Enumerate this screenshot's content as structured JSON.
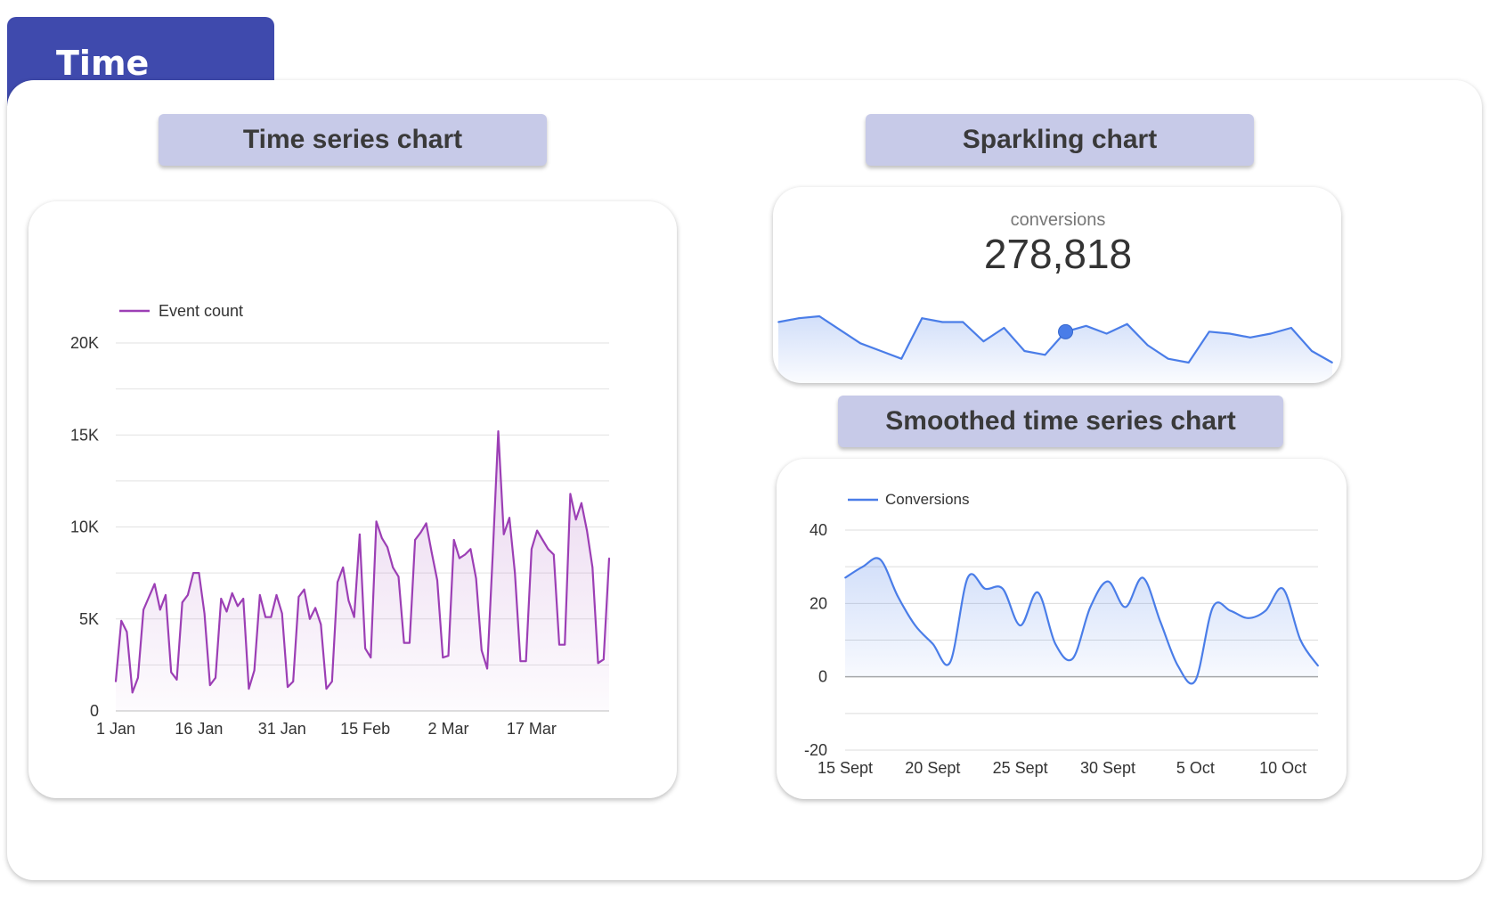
{
  "tab": {
    "label": "Time series"
  },
  "sections": {
    "time_series_title": "Time series chart",
    "sparkling_title": "Sparkling chart",
    "smoothed_title": "Smoothed time series chart"
  },
  "colors": {
    "accent": "#3f4aad",
    "purple": "#9c3fb5",
    "blue": "#4a7de8",
    "title_bg": "#c7cae8"
  },
  "chart_data": [
    {
      "id": "time_series",
      "type": "area",
      "title": "Time series chart",
      "legend": "Event count",
      "legend_position": "top-left",
      "x_tick_labels": [
        "1 Jan",
        "16 Jan",
        "31 Jan",
        "15 Feb",
        "2 Mar",
        "17 Mar"
      ],
      "x_tick_days": [
        0,
        15,
        30,
        45,
        60,
        75
      ],
      "y_tick_labels": [
        "0",
        "5K",
        "10K",
        "15K",
        "20K"
      ],
      "y_ticks": [
        0,
        5000,
        10000,
        15000,
        20000
      ],
      "ylim": [
        0,
        20000
      ],
      "x_range_days": [
        0,
        89
      ],
      "values": [
        1600,
        4900,
        4300,
        1000,
        1800,
        5500,
        6200,
        6900,
        5500,
        6300,
        2100,
        1700,
        5900,
        6300,
        7500,
        7500,
        5300,
        1400,
        1800,
        6100,
        5400,
        6400,
        5700,
        6100,
        1200,
        2200,
        6300,
        5100,
        5100,
        6300,
        5300,
        1300,
        1600,
        6200,
        6600,
        5000,
        5600,
        4700,
        1200,
        1600,
        7000,
        7800,
        6000,
        5100,
        9600,
        3400,
        2900,
        10300,
        9400,
        8900,
        7800,
        7300,
        3700,
        3700,
        9300,
        9700,
        10200,
        8600,
        7100,
        2900,
        3000,
        9300,
        8300,
        8500,
        8800,
        7200,
        3300,
        2300,
        8500,
        15200,
        9600,
        10500,
        7500,
        2700,
        2700,
        8800,
        9800,
        9300,
        8800,
        8500,
        3600,
        3600,
        11800,
        10400,
        11300,
        9800,
        7800,
        2600,
        2800,
        8300
      ]
    },
    {
      "id": "sparkling",
      "type": "area",
      "title": "Sparkling chart",
      "metric_label": "conversions",
      "metric_value": "278,818",
      "values": [
        22,
        24,
        25,
        18,
        11,
        7,
        3,
        24,
        22,
        22,
        12,
        19,
        7,
        5,
        17,
        20,
        16,
        21,
        10,
        3,
        1,
        17,
        16,
        14,
        16,
        19,
        7,
        1
      ],
      "highlight_index": 14
    },
    {
      "id": "smoothed",
      "type": "line",
      "title": "Smoothed time series chart",
      "legend": "Conversions",
      "legend_position": "top-left",
      "x_tick_labels": [
        "15 Sept",
        "20 Sept",
        "25 Sept",
        "30 Sept",
        "5 Oct",
        "10 Oct"
      ],
      "x_tick_days": [
        0,
        5,
        10,
        15,
        20,
        25
      ],
      "y_tick_labels": [
        "-20",
        "0",
        "20",
        "40"
      ],
      "y_ticks": [
        -20,
        0,
        20,
        40
      ],
      "ylim": [
        -20,
        40
      ],
      "x_range_days": [
        0,
        27
      ],
      "values": [
        27,
        30,
        32,
        22,
        14,
        9,
        4,
        27,
        24,
        24,
        14,
        23,
        9,
        5,
        19,
        26,
        19,
        27,
        15,
        3,
        -1,
        19,
        18,
        16,
        18,
        24,
        10,
        3
      ]
    }
  ]
}
